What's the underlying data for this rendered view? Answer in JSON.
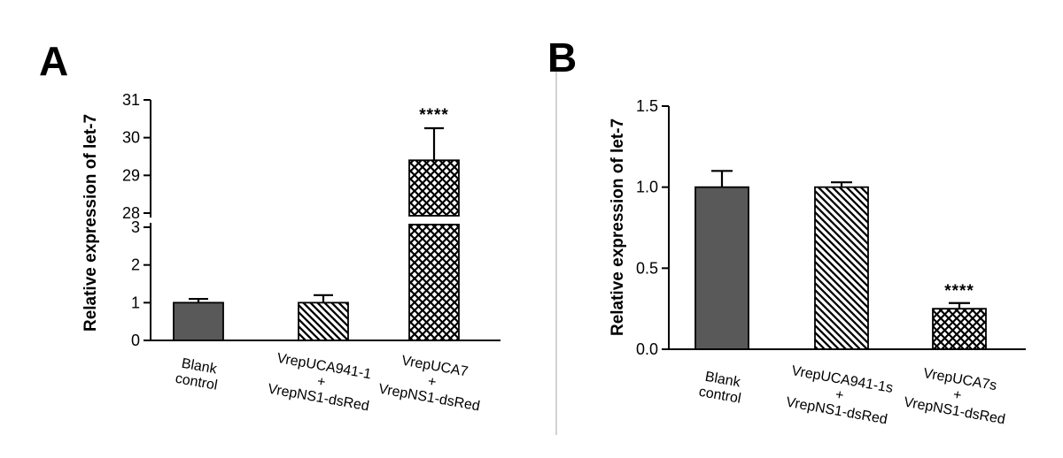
{
  "figure": {
    "panels": [
      {
        "label": "A"
      },
      {
        "label": "B"
      }
    ]
  },
  "chart_data": [
    {
      "type": "bar",
      "panel": "A",
      "title": "",
      "xlabel": "",
      "ylabel": "Relative expression of let-7",
      "categories": [
        [
          "Blank",
          "control"
        ],
        [
          "VrepUCA941-1",
          "+",
          "VrepNS1-dsRed"
        ],
        [
          "VrepUCA7",
          "+",
          "VrepNS1-dsRed"
        ]
      ],
      "values": [
        1.0,
        1.0,
        29.4
      ],
      "errors": [
        0.1,
        0.2,
        0.85
      ],
      "bar_styles": [
        "solid-gray",
        "diagonal-stripes",
        "crosshatch"
      ],
      "bar_color": "#595959",
      "axis_break": {
        "lower_range": [
          0,
          3
        ],
        "upper_range": [
          28,
          31
        ]
      },
      "yticks_lower": [
        "0",
        "1",
        "2",
        "3"
      ],
      "yticks_upper": [
        "28",
        "29",
        "30",
        "31"
      ],
      "annotations": [
        {
          "bar_index": 2,
          "text": "****"
        }
      ],
      "grid": false,
      "legend": null
    },
    {
      "type": "bar",
      "panel": "B",
      "title": "",
      "xlabel": "",
      "ylabel": "Relative expression of let-7",
      "categories": [
        [
          "Blank",
          "control"
        ],
        [
          "VrepUCA941-1s",
          "+",
          "VrepNS1-dsRed"
        ],
        [
          "VrepUCA7s",
          "+",
          "VrepNS1-dsRed"
        ]
      ],
      "values": [
        1.0,
        1.0,
        0.25
      ],
      "errors": [
        0.1,
        0.03,
        0.035
      ],
      "bar_styles": [
        "solid-gray",
        "diagonal-stripes",
        "crosshatch"
      ],
      "bar_color": "#595959",
      "ylim": [
        0,
        1.5
      ],
      "yticks": [
        "0.0",
        "0.5",
        "1.0",
        "1.5"
      ],
      "annotations": [
        {
          "bar_index": 2,
          "text": "****"
        }
      ],
      "grid": false,
      "legend": null
    }
  ]
}
